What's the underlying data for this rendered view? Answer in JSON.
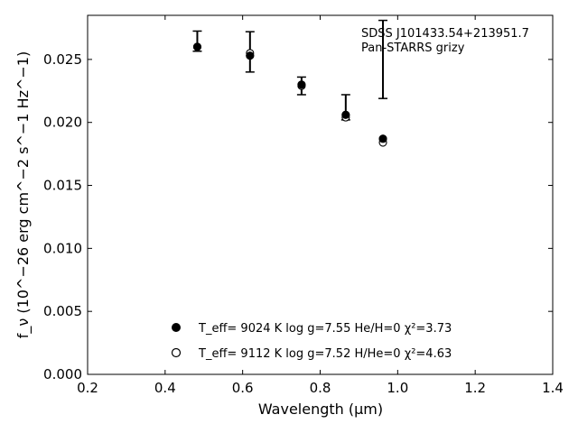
{
  "chart_data": {
    "type": "scatter",
    "xlabel": "Wavelength (μm)",
    "ylabel": "f_ν (10^−26 erg cm^−2 s^−1 Hz^−1)",
    "xlim": [
      0.2,
      1.4
    ],
    "ylim": [
      0.0,
      0.0285
    ],
    "x_ticks": [
      0.2,
      0.4,
      0.6,
      0.8,
      1.0,
      1.2,
      1.4
    ],
    "x_tick_labels": [
      "0.2",
      "0.4",
      "0.6",
      "0.8",
      "1.0",
      "1.2",
      "1.4"
    ],
    "y_ticks": [
      0.0,
      0.005,
      0.01,
      0.015,
      0.02,
      0.025
    ],
    "y_tick_labels": [
      "0.000",
      "0.005",
      "0.010",
      "0.015",
      "0.020",
      "0.025"
    ],
    "grid": false,
    "annotations": [
      "SDSS J101433.54+213951.7",
      "Pan-STARRS grizy"
    ],
    "observed": {
      "x": [
        0.483,
        0.619,
        0.752,
        0.866,
        0.962
      ],
      "y": [
        0.02645,
        0.0256,
        0.0229,
        0.0212,
        0.025
      ],
      "yerr_low": [
        0.0008,
        0.0016,
        0.0007,
        0.001,
        0.0031
      ],
      "yerr_high": [
        0.0008,
        0.0016,
        0.0007,
        0.001,
        0.0031
      ]
    },
    "series": [
      {
        "name": "T_eff=  9024 K  log g=7.55  He/H=0  χ²=3.73",
        "marker": "filled-circle",
        "x": [
          0.483,
          0.619,
          0.752,
          0.866,
          0.962
        ],
        "y": [
          0.026,
          0.0253,
          0.023,
          0.0206,
          0.0187
        ]
      },
      {
        "name": "T_eff=  9112 K  log g=7.52  H/He=0  χ²=4.63",
        "marker": "open-circle",
        "x": [
          0.483,
          0.619,
          0.752,
          0.866,
          0.962
        ],
        "y": [
          0.026,
          0.0255,
          0.0229,
          0.0204,
          0.0184
        ]
      }
    ],
    "legend_position": "lower-center",
    "colors": {
      "marker": "#000000",
      "background": "#ffffff"
    }
  }
}
